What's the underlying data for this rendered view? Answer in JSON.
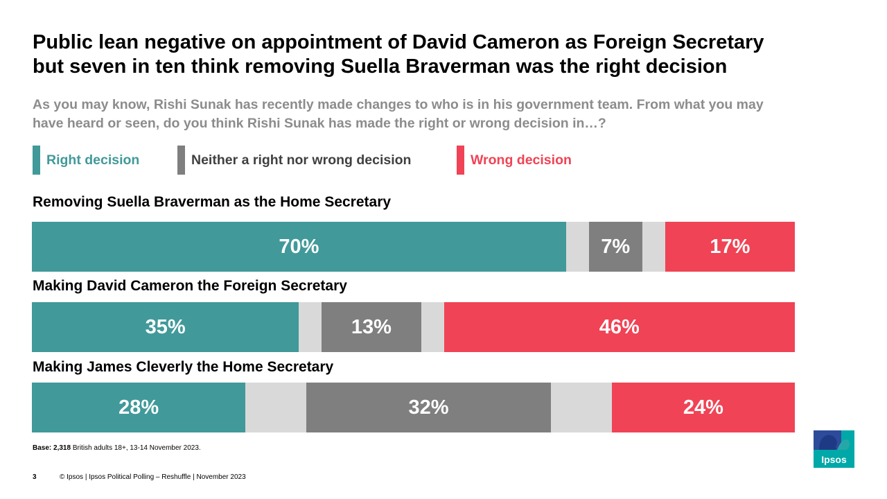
{
  "title_lines": [
    "Public lean negative on appointment of David Cameron as Foreign Secretary",
    "but seven in ten think removing Suella Braverman was the right decision"
  ],
  "subtitle_lines": [
    "As you may know, Rishi Sunak has recently made changes to who is in his government team. From what you may",
    "have heard or seen, do you think Rishi Sunak has made the right or wrong decision in…?"
  ],
  "legend": [
    {
      "label": "Right decision",
      "color": "#41999a",
      "text_color": "#41999a"
    },
    {
      "label": "Neither a right nor wrong decision",
      "color": "#7f7f7f",
      "text_color": "#404040"
    },
    {
      "label": "Wrong decision",
      "color": "#f04355",
      "text_color": "#f04355"
    }
  ],
  "chart_data": {
    "type": "bar",
    "orientation": "horizontal",
    "stacked": true,
    "categories": [
      "Removing Suella Braverman as the Home Secretary",
      "Making David Cameron the Foreign Secretary",
      "Making James Cleverly the Home Secretary"
    ],
    "series": [
      {
        "name": "Right decision",
        "color": "#41999a",
        "values": [
          70,
          35,
          28
        ],
        "labels": [
          "70%",
          "35%",
          "28%"
        ]
      },
      {
        "name": "Neither a right nor wrong decision",
        "color": "#7f7f7f",
        "values": [
          7,
          13,
          32
        ],
        "labels": [
          "7%",
          "13%",
          "32%"
        ]
      },
      {
        "name": "Wrong decision",
        "color": "#f04355",
        "values": [
          17,
          46,
          24
        ],
        "labels": [
          "17%",
          "46%",
          "24%"
        ]
      }
    ],
    "remainder_color": "#d9d9d9",
    "xlim": [
      0,
      100
    ],
    "legend_position": "top"
  },
  "base_note": {
    "bold": "Base: 2,318",
    "text": " British adults 18+, 13-14 November 2023."
  },
  "footer": {
    "page": "3",
    "text": "© Ipsos | Ipsos Political Polling – Reshuffle | November 2023"
  },
  "logo_text": "Ipsos"
}
